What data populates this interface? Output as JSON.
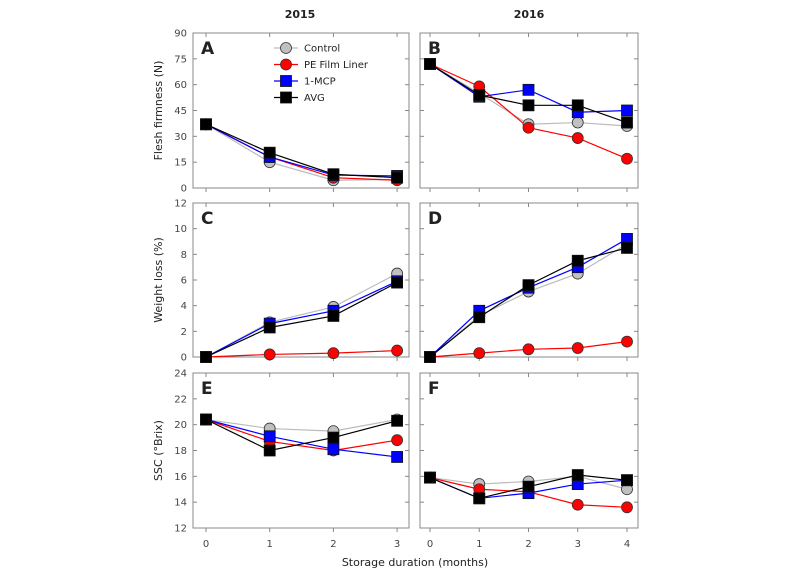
{
  "colors": {
    "Control": "#c0c0c0",
    "PE Film Liner": "#ff0000",
    "1-MCP": "#0000ff",
    "AVG": "#000000"
  },
  "chart_data": {
    "type": "line",
    "column_titles": [
      "2015",
      "2016"
    ],
    "xlabel": "Storage duration (months)",
    "legend": {
      "placement": "top-right of panel A",
      "entries": [
        "Control",
        "PE Film Liner",
        "1-MCP",
        "AVG"
      ],
      "markers": [
        "circle",
        "circle",
        "square",
        "square"
      ]
    },
    "panels": [
      {
        "label": "A",
        "ylabel": "Flesh firmness (N)",
        "ylim": [
          0,
          90
        ],
        "yticks": [
          0,
          15,
          30,
          45,
          60,
          75,
          90
        ],
        "x": [
          0,
          1,
          2,
          3
        ],
        "series": [
          {
            "name": "Control",
            "values": [
              37,
              15,
              4.5,
              5
            ]
          },
          {
            "name": "PE Film Liner",
            "values": [
              37,
              18,
              6,
              4.5
            ]
          },
          {
            "name": "1-MCP",
            "values": [
              37,
              18,
              7.5,
              7
            ]
          },
          {
            "name": "AVG",
            "values": [
              37,
              20.5,
              8,
              6
            ]
          }
        ]
      },
      {
        "label": "B",
        "ylabel": "",
        "ylim": [
          0,
          90
        ],
        "yticks": [
          0,
          15,
          30,
          45,
          60,
          75,
          90
        ],
        "x": [
          0,
          1,
          2,
          3,
          4
        ],
        "series": [
          {
            "name": "Control",
            "values": [
              72,
              55,
              37,
              38,
              36
            ]
          },
          {
            "name": "PE Film Liner",
            "values": [
              72,
              59,
              35,
              29,
              17
            ]
          },
          {
            "name": "1-MCP",
            "values": [
              72,
              53,
              57,
              44,
              45
            ]
          },
          {
            "name": "AVG",
            "values": [
              72,
              54,
              48,
              48,
              38
            ]
          }
        ]
      },
      {
        "label": "C",
        "ylabel": "Weight loss (%)",
        "ylim": [
          0,
          12
        ],
        "yticks": [
          0,
          2,
          4,
          6,
          8,
          10,
          12
        ],
        "x": [
          0,
          1,
          2,
          3
        ],
        "series": [
          {
            "name": "Control",
            "values": [
              0,
              2.7,
              3.9,
              6.5
            ]
          },
          {
            "name": "PE Film Liner",
            "values": [
              0,
              0.2,
              0.3,
              0.5
            ]
          },
          {
            "name": "1-MCP",
            "values": [
              0,
              2.6,
              3.6,
              5.9
            ]
          },
          {
            "name": "AVG",
            "values": [
              0,
              2.3,
              3.2,
              5.8
            ]
          }
        ]
      },
      {
        "label": "D",
        "ylabel": "",
        "ylim": [
          0,
          12
        ],
        "yticks": [
          0,
          2,
          4,
          6,
          8,
          10,
          12
        ],
        "x": [
          0,
          1,
          2,
          3,
          4
        ],
        "series": [
          {
            "name": "Control",
            "values": [
              0,
              3.2,
              5.1,
              6.5,
              8.8
            ]
          },
          {
            "name": "PE Film Liner",
            "values": [
              0,
              0.3,
              0.6,
              0.7,
              1.2
            ]
          },
          {
            "name": "1-MCP",
            "values": [
              0,
              3.6,
              5.4,
              7.0,
              9.2
            ]
          },
          {
            "name": "AVG",
            "values": [
              0,
              3.1,
              5.6,
              7.5,
              8.5
            ]
          }
        ]
      },
      {
        "label": "E",
        "ylabel": "SSC (°Brix)",
        "ylim": [
          12,
          24
        ],
        "yticks": [
          12,
          14,
          16,
          18,
          20,
          22,
          24
        ],
        "x": [
          0,
          1,
          2,
          3
        ],
        "series": [
          {
            "name": "Control",
            "values": [
              20.4,
              19.7,
              19.5,
              20.4
            ]
          },
          {
            "name": "PE Film Liner",
            "values": [
              20.4,
              18.7,
              18.0,
              18.8
            ]
          },
          {
            "name": "1-MCP",
            "values": [
              20.4,
              19.1,
              18.1,
              17.5
            ]
          },
          {
            "name": "AVG",
            "values": [
              20.4,
              18.0,
              19.0,
              20.3
            ]
          }
        ]
      },
      {
        "label": "F",
        "ylabel": "",
        "ylim": [
          12,
          24
        ],
        "yticks": [
          12,
          14,
          16,
          18,
          20,
          22,
          24
        ],
        "x": [
          0,
          1,
          2,
          3,
          4
        ],
        "series": [
          {
            "name": "Control",
            "values": [
              15.9,
              15.4,
              15.6,
              16.0,
              15.0
            ]
          },
          {
            "name": "PE Film Liner",
            "values": [
              15.9,
              15.0,
              14.8,
              13.8,
              13.6
            ]
          },
          {
            "name": "1-MCP",
            "values": [
              15.9,
              14.3,
              14.7,
              15.4,
              15.7
            ]
          },
          {
            "name": "AVG",
            "values": [
              15.9,
              14.3,
              15.2,
              16.1,
              15.7
            ]
          }
        ]
      }
    ]
  }
}
